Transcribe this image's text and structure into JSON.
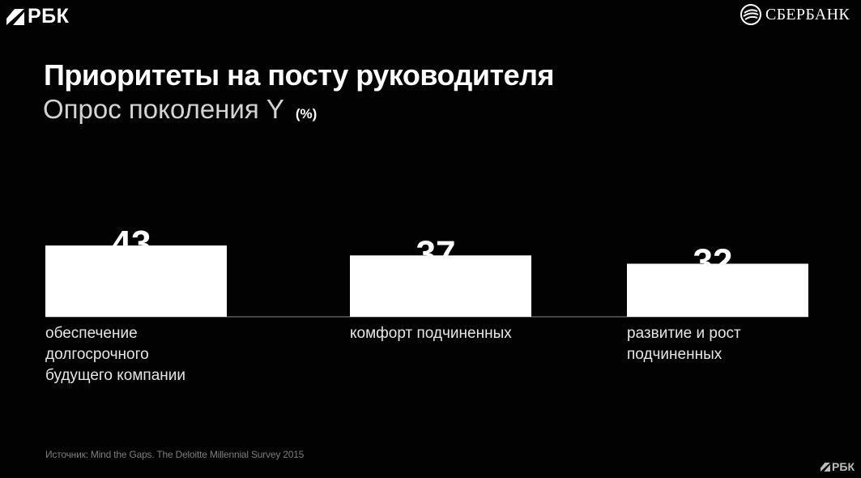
{
  "header": {
    "left_logo": "РБК",
    "right_logo": "СБЕРБАНК",
    "left_logo_icon": "rbk-slash-icon",
    "right_logo_icon": "sberbank-icon"
  },
  "title": "Приоритеты на посту руководителя",
  "subtitle": "Опрос поколения Y",
  "unit": "(%)",
  "chart_data": {
    "type": "bar",
    "title": "Приоритеты на посту руководителя",
    "subtitle": "Опрос поколения Y",
    "unit": "(%)",
    "categories": [
      "обеспечение\nдолгосрочного\nбудущего компании",
      "комфорт подчиненных",
      "развитие и рост\nподчиненных"
    ],
    "values": [
      43,
      37,
      32
    ],
    "ylim": [
      0,
      43
    ],
    "grid": false,
    "bar_color": "#ffffff",
    "baseline_color": "#5a5a5a"
  },
  "source": "Источник: Mind the Gaps. The Deloitte Millennial Survey 2015",
  "watermark": "РБК",
  "colors": {
    "background": "#020202",
    "text": "#ffffff",
    "subtitle": "#d4d4d4",
    "source": "#7d7d7d"
  }
}
